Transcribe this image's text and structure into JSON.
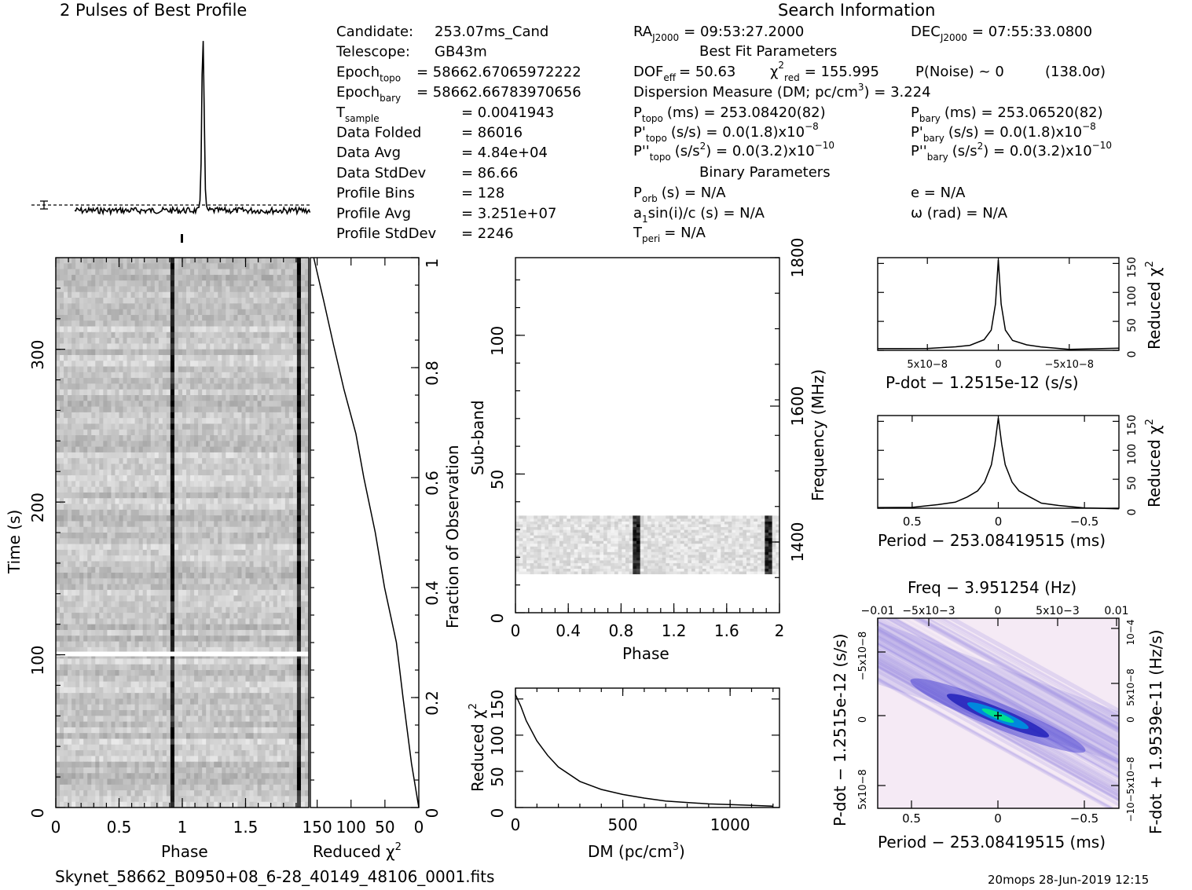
{
  "header": {
    "profile_title": "2 Pulses of Best Profile",
    "search_title": "Search Information",
    "best_fit_title": "Best Fit Parameters",
    "binary_title": "Binary Parameters"
  },
  "left_info": [
    {
      "label": "Candidate:",
      "sub": "",
      "value": "253.07ms_Cand"
    },
    {
      "label": "Telescope:",
      "sub": "",
      "value": "GB43m"
    },
    {
      "label": "Epoch",
      "sub": "topo",
      "value": "= 58662.67065972222"
    },
    {
      "label": "Epoch",
      "sub": "bary",
      "value": "= 58662.66783970656"
    },
    {
      "label": "T",
      "sub": "sample",
      "value": "= 0.0041943"
    },
    {
      "label": "Data Folded",
      "sub": "",
      "value": "= 86016"
    },
    {
      "label": "Data Avg",
      "sub": "",
      "value": "= 4.84e+04"
    },
    {
      "label": "Data StdDev",
      "sub": "",
      "value": "= 86.66"
    },
    {
      "label": "Profile Bins",
      "sub": "",
      "value": "= 128"
    },
    {
      "label": "Profile Avg",
      "sub": "",
      "value": "= 3.251e+07"
    },
    {
      "label": "Profile StdDev",
      "sub": "",
      "value": "= 2246"
    }
  ],
  "search_info": {
    "ra": "RA",
    "ra_sub": "J2000",
    "ra_value": "= 09:53:27.2000",
    "dec": "DEC",
    "dec_sub": "J2000",
    "dec_value": "= 07:55:33.0800",
    "dof": "DOF",
    "dof_sub": "eff",
    "dof_value": "= 50.63",
    "chi": "χ",
    "chi_sup": "2",
    "chi_sub": "red",
    "chi_value": "= 155.995",
    "pnoise": "P(Noise) ~ 0",
    "sigma": "(138.0σ)",
    "dm_line": "Dispersion Measure (DM; pc/cm",
    "dm_sup": "3",
    "dm_value": ") = 3.224",
    "ptopo": "P",
    "ptopo_sub": "topo",
    "ptopo_value": "(ms) = 253.08420(82)",
    "pbary": "P",
    "pbary_sub": "bary",
    "pbary_value": "(ms) = 253.06520(82)",
    "pdtopo": "P'",
    "pdtopo_sub": "topo",
    "pdtopo_value": "(s/s) = 0.0(1.8)x10",
    "pdtopo_exp": "−8",
    "pdbary": "P'",
    "pdbary_sub": "bary",
    "pdbary_value": "(s/s) = 0.0(1.8)x10",
    "pdbary_exp": "−8",
    "pddtopo": "P''",
    "pddtopo_sub": "topo",
    "pddtopo_value": "(s/s",
    "pddtopo_sup": "2",
    "pddtopo_rest": ") = 0.0(3.2)x10",
    "pddtopo_exp": "−10",
    "pddbary": "P''",
    "pddbary_sub": "bary",
    "pddbary_value": "(s/s",
    "pddbary_sup": "2",
    "pddbary_rest": ") = 0.0(3.2)x10",
    "pddbary_exp": "−10",
    "porb": "P",
    "porb_sub": "orb",
    "porb_value": "(s) = N/A",
    "ecc": "e = N/A",
    "a1": "a",
    "a1_sub": "1",
    "a1_value": "sin(i)/c (s) = N/A",
    "omega": "ω (rad) = N/A",
    "tperi": "T",
    "tperi_sub": "peri",
    "tperi_value": "= N/A"
  },
  "footer": {
    "filename": "Skynet_58662_B0950+08_6-28_40149_48106_0001.fits",
    "stamp": "20mops 28-Jun-2019 12:15"
  },
  "colors": {
    "background": "#ffffff",
    "ink": "#000000",
    "greyscale_min": "#ffffff",
    "greyscale_max": "#000000",
    "ppdot_low": "#f6e9f6",
    "ppdot_mid": "#3b3bd6",
    "ppdot_high": "#00e0a0"
  },
  "chart_data": [
    {
      "id": "profile",
      "type": "line",
      "title": "2 Pulses of Best Profile",
      "x_range": [
        0,
        2
      ],
      "peaks_phase": [
        0.92,
        1.92
      ],
      "peak_height_ratio": 1.0,
      "baseline_marker": "dashed line with error bar",
      "description_values": "two narrow pulses per two rotations"
    },
    {
      "id": "time_phase",
      "type": "heatmap",
      "xlabel": "Phase",
      "ylabel": "Time (s)",
      "x_ticks": [
        "0",
        "0.5",
        "1",
        "1.5"
      ],
      "y_ticks": [
        "0",
        "100",
        "200",
        "300"
      ],
      "x_range": [
        0,
        2
      ],
      "y_range": [
        0,
        360
      ],
      "pulse_phases": [
        0.92,
        1.92
      ],
      "gap_time": 100
    },
    {
      "id": "time_chi2",
      "type": "line",
      "xlabel": "Reduced χ2",
      "x_ticks": [
        "150",
        "100",
        "50",
        "0"
      ],
      "y2label": "Fraction of Observation",
      "y2_ticks": [
        "0",
        "0.2",
        "0.4",
        "0.6",
        "0.8",
        "1"
      ],
      "x": [
        0,
        10,
        22,
        35,
        50,
        65,
        80,
        95,
        110,
        125,
        140,
        155
      ],
      "y": [
        0,
        0.08,
        0.2,
        0.3,
        0.4,
        0.5,
        0.6,
        0.68,
        0.76,
        0.84,
        0.92,
        1.0
      ]
    },
    {
      "id": "subband_phase",
      "type": "heatmap",
      "xlabel": "Phase",
      "ylabel": "Sub-band",
      "y2label": "Frequency (MHz)",
      "x_ticks": [
        "0",
        "0.4",
        "0.8",
        "1.2",
        "1.6",
        "2"
      ],
      "y_ticks": [
        "0",
        "50",
        "100"
      ],
      "y2_ticks": [
        "1400",
        "1600",
        "1800"
      ],
      "x_range": [
        0,
        2
      ],
      "y_range": [
        0,
        128
      ],
      "active_subbands": [
        14,
        35
      ],
      "pulse_phases": [
        0.92,
        1.92
      ]
    },
    {
      "id": "dm_chi2",
      "type": "line",
      "xlabel": "DM (pc/cm3)",
      "ylabel": "Reduced χ2",
      "x_ticks": [
        "0",
        "500",
        "1000"
      ],
      "y_ticks": [
        "0",
        "50",
        "100",
        "150"
      ],
      "x_range": [
        0,
        1230
      ],
      "y_range": [
        0,
        165
      ],
      "x": [
        0,
        25,
        50,
        100,
        150,
        200,
        300,
        400,
        500,
        600,
        700,
        800,
        900,
        1000,
        1100,
        1200
      ],
      "y": [
        156,
        140,
        120,
        92,
        72,
        56,
        36,
        25,
        18,
        13,
        9,
        7,
        5,
        4,
        3,
        2
      ]
    },
    {
      "id": "pdot_chi2",
      "type": "line",
      "xlabel": "P-dot − 1.2515e-12 (s/s)",
      "ylabel": "Reduced χ2",
      "x_ticks": [
        "5x10−8",
        "0",
        "−5x10−8"
      ],
      "y_ticks": [
        "0",
        "50",
        "100",
        "150"
      ],
      "x_range": [
        8.5e-08,
        -8.5e-08
      ],
      "y_range": [
        0,
        160
      ],
      "x": [
        8.5e-08,
        5e-08,
        3e-08,
        2e-08,
        1e-08,
        5e-09,
        2e-09,
        0,
        -2e-09,
        -5e-09,
        -1e-08,
        -2e-08,
        -3e-08,
        -5e-08,
        -8.5e-08
      ],
      "y": [
        2,
        3,
        5,
        8,
        18,
        35,
        80,
        156,
        80,
        35,
        18,
        8,
        5,
        3,
        2
      ]
    },
    {
      "id": "period_chi2",
      "type": "line",
      "xlabel": "Period − 253.08419515 (ms)",
      "ylabel": "Reduced χ2",
      "x_ticks": [
        "0.5",
        "0",
        "−0.5"
      ],
      "y_ticks": [
        "0",
        "50",
        "100",
        "150"
      ],
      "x_range": [
        0.7,
        -0.7
      ],
      "y_range": [
        0,
        160
      ],
      "x": [
        0.7,
        0.5,
        0.35,
        0.25,
        0.18,
        0.12,
        0.08,
        0.04,
        0.02,
        0,
        -0.02,
        -0.04,
        -0.08,
        -0.12,
        -0.18,
        -0.25,
        -0.35,
        -0.5,
        -0.7
      ],
      "y": [
        1,
        2,
        5,
        10,
        18,
        30,
        45,
        75,
        110,
        156,
        110,
        75,
        45,
        30,
        18,
        10,
        5,
        2,
        1
      ]
    },
    {
      "id": "p_pdot",
      "type": "heatmap",
      "title": "Freq − 3.951254 (Hz)",
      "xlabel": "Period − 253.08419515 (ms)",
      "ylabel": "P-dot − 1.2515e-12 (s/s)",
      "y2label": "F-dot + 1.9539e-11 (Hz/s)",
      "x_ticks": [
        "0.5",
        "0",
        "−0.5"
      ],
      "x2_ticks": [
        "−0.01",
        "−5x10−3",
        "0",
        "5x10−3",
        "0.01"
      ],
      "y_ticks": [
        "5x10−8",
        "0",
        "−5x10−8"
      ],
      "y2_ticks": [
        "−10−5x10−8",
        "0",
        "5x10−8",
        "10−4"
      ],
      "best_fit": [
        0,
        0
      ]
    }
  ]
}
